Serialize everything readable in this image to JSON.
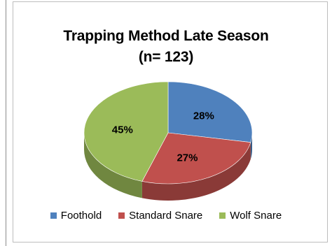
{
  "chart_data": {
    "type": "pie",
    "title": "Trapping Method Late Season",
    "subtitle": "(n= 123)",
    "categories": [
      "Foothold",
      "Standard Snare",
      "Wolf Snare"
    ],
    "values": [
      28,
      27,
      45
    ],
    "value_labels": [
      "28%",
      "27%",
      "45%"
    ],
    "colors": [
      "#4f81bd",
      "#c0504d",
      "#9bbb59"
    ],
    "legend_position": "bottom",
    "style": "3d"
  }
}
